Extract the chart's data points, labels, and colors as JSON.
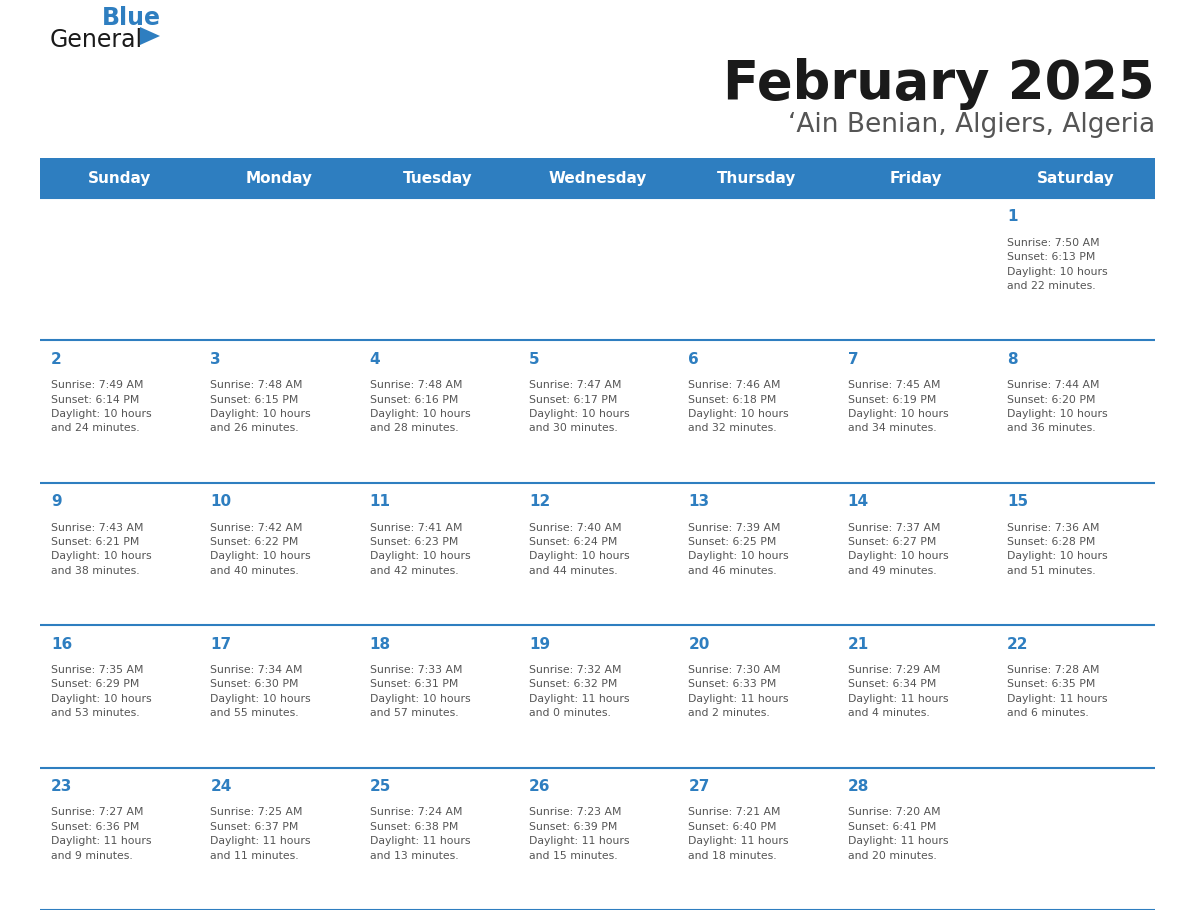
{
  "title": "February 2025",
  "subtitle": "‘Ain Benian, Algiers, Algeria",
  "header_bg_color": "#2E7EC0",
  "header_text_color": "#FFFFFF",
  "cell_text_color": "#555555",
  "day_number_color": "#2E7EC0",
  "grid_line_color": "#2E7EC0",
  "days_of_week": [
    "Sunday",
    "Monday",
    "Tuesday",
    "Wednesday",
    "Thursday",
    "Friday",
    "Saturday"
  ],
  "title_color": "#1a1a1a",
  "subtitle_color": "#555555",
  "logo_general_color": "#1a1a1a",
  "logo_blue_color": "#2E7EC0",
  "weeks": [
    [
      {
        "day": null,
        "info": null
      },
      {
        "day": null,
        "info": null
      },
      {
        "day": null,
        "info": null
      },
      {
        "day": null,
        "info": null
      },
      {
        "day": null,
        "info": null
      },
      {
        "day": null,
        "info": null
      },
      {
        "day": 1,
        "info": "Sunrise: 7:50 AM\nSunset: 6:13 PM\nDaylight: 10 hours\nand 22 minutes."
      }
    ],
    [
      {
        "day": 2,
        "info": "Sunrise: 7:49 AM\nSunset: 6:14 PM\nDaylight: 10 hours\nand 24 minutes."
      },
      {
        "day": 3,
        "info": "Sunrise: 7:48 AM\nSunset: 6:15 PM\nDaylight: 10 hours\nand 26 minutes."
      },
      {
        "day": 4,
        "info": "Sunrise: 7:48 AM\nSunset: 6:16 PM\nDaylight: 10 hours\nand 28 minutes."
      },
      {
        "day": 5,
        "info": "Sunrise: 7:47 AM\nSunset: 6:17 PM\nDaylight: 10 hours\nand 30 minutes."
      },
      {
        "day": 6,
        "info": "Sunrise: 7:46 AM\nSunset: 6:18 PM\nDaylight: 10 hours\nand 32 minutes."
      },
      {
        "day": 7,
        "info": "Sunrise: 7:45 AM\nSunset: 6:19 PM\nDaylight: 10 hours\nand 34 minutes."
      },
      {
        "day": 8,
        "info": "Sunrise: 7:44 AM\nSunset: 6:20 PM\nDaylight: 10 hours\nand 36 minutes."
      }
    ],
    [
      {
        "day": 9,
        "info": "Sunrise: 7:43 AM\nSunset: 6:21 PM\nDaylight: 10 hours\nand 38 minutes."
      },
      {
        "day": 10,
        "info": "Sunrise: 7:42 AM\nSunset: 6:22 PM\nDaylight: 10 hours\nand 40 minutes."
      },
      {
        "day": 11,
        "info": "Sunrise: 7:41 AM\nSunset: 6:23 PM\nDaylight: 10 hours\nand 42 minutes."
      },
      {
        "day": 12,
        "info": "Sunrise: 7:40 AM\nSunset: 6:24 PM\nDaylight: 10 hours\nand 44 minutes."
      },
      {
        "day": 13,
        "info": "Sunrise: 7:39 AM\nSunset: 6:25 PM\nDaylight: 10 hours\nand 46 minutes."
      },
      {
        "day": 14,
        "info": "Sunrise: 7:37 AM\nSunset: 6:27 PM\nDaylight: 10 hours\nand 49 minutes."
      },
      {
        "day": 15,
        "info": "Sunrise: 7:36 AM\nSunset: 6:28 PM\nDaylight: 10 hours\nand 51 minutes."
      }
    ],
    [
      {
        "day": 16,
        "info": "Sunrise: 7:35 AM\nSunset: 6:29 PM\nDaylight: 10 hours\nand 53 minutes."
      },
      {
        "day": 17,
        "info": "Sunrise: 7:34 AM\nSunset: 6:30 PM\nDaylight: 10 hours\nand 55 minutes."
      },
      {
        "day": 18,
        "info": "Sunrise: 7:33 AM\nSunset: 6:31 PM\nDaylight: 10 hours\nand 57 minutes."
      },
      {
        "day": 19,
        "info": "Sunrise: 7:32 AM\nSunset: 6:32 PM\nDaylight: 11 hours\nand 0 minutes."
      },
      {
        "day": 20,
        "info": "Sunrise: 7:30 AM\nSunset: 6:33 PM\nDaylight: 11 hours\nand 2 minutes."
      },
      {
        "day": 21,
        "info": "Sunrise: 7:29 AM\nSunset: 6:34 PM\nDaylight: 11 hours\nand 4 minutes."
      },
      {
        "day": 22,
        "info": "Sunrise: 7:28 AM\nSunset: 6:35 PM\nDaylight: 11 hours\nand 6 minutes."
      }
    ],
    [
      {
        "day": 23,
        "info": "Sunrise: 7:27 AM\nSunset: 6:36 PM\nDaylight: 11 hours\nand 9 minutes."
      },
      {
        "day": 24,
        "info": "Sunrise: 7:25 AM\nSunset: 6:37 PM\nDaylight: 11 hours\nand 11 minutes."
      },
      {
        "day": 25,
        "info": "Sunrise: 7:24 AM\nSunset: 6:38 PM\nDaylight: 11 hours\nand 13 minutes."
      },
      {
        "day": 26,
        "info": "Sunrise: 7:23 AM\nSunset: 6:39 PM\nDaylight: 11 hours\nand 15 minutes."
      },
      {
        "day": 27,
        "info": "Sunrise: 7:21 AM\nSunset: 6:40 PM\nDaylight: 11 hours\nand 18 minutes."
      },
      {
        "day": 28,
        "info": "Sunrise: 7:20 AM\nSunset: 6:41 PM\nDaylight: 11 hours\nand 20 minutes."
      },
      {
        "day": null,
        "info": null
      }
    ]
  ]
}
